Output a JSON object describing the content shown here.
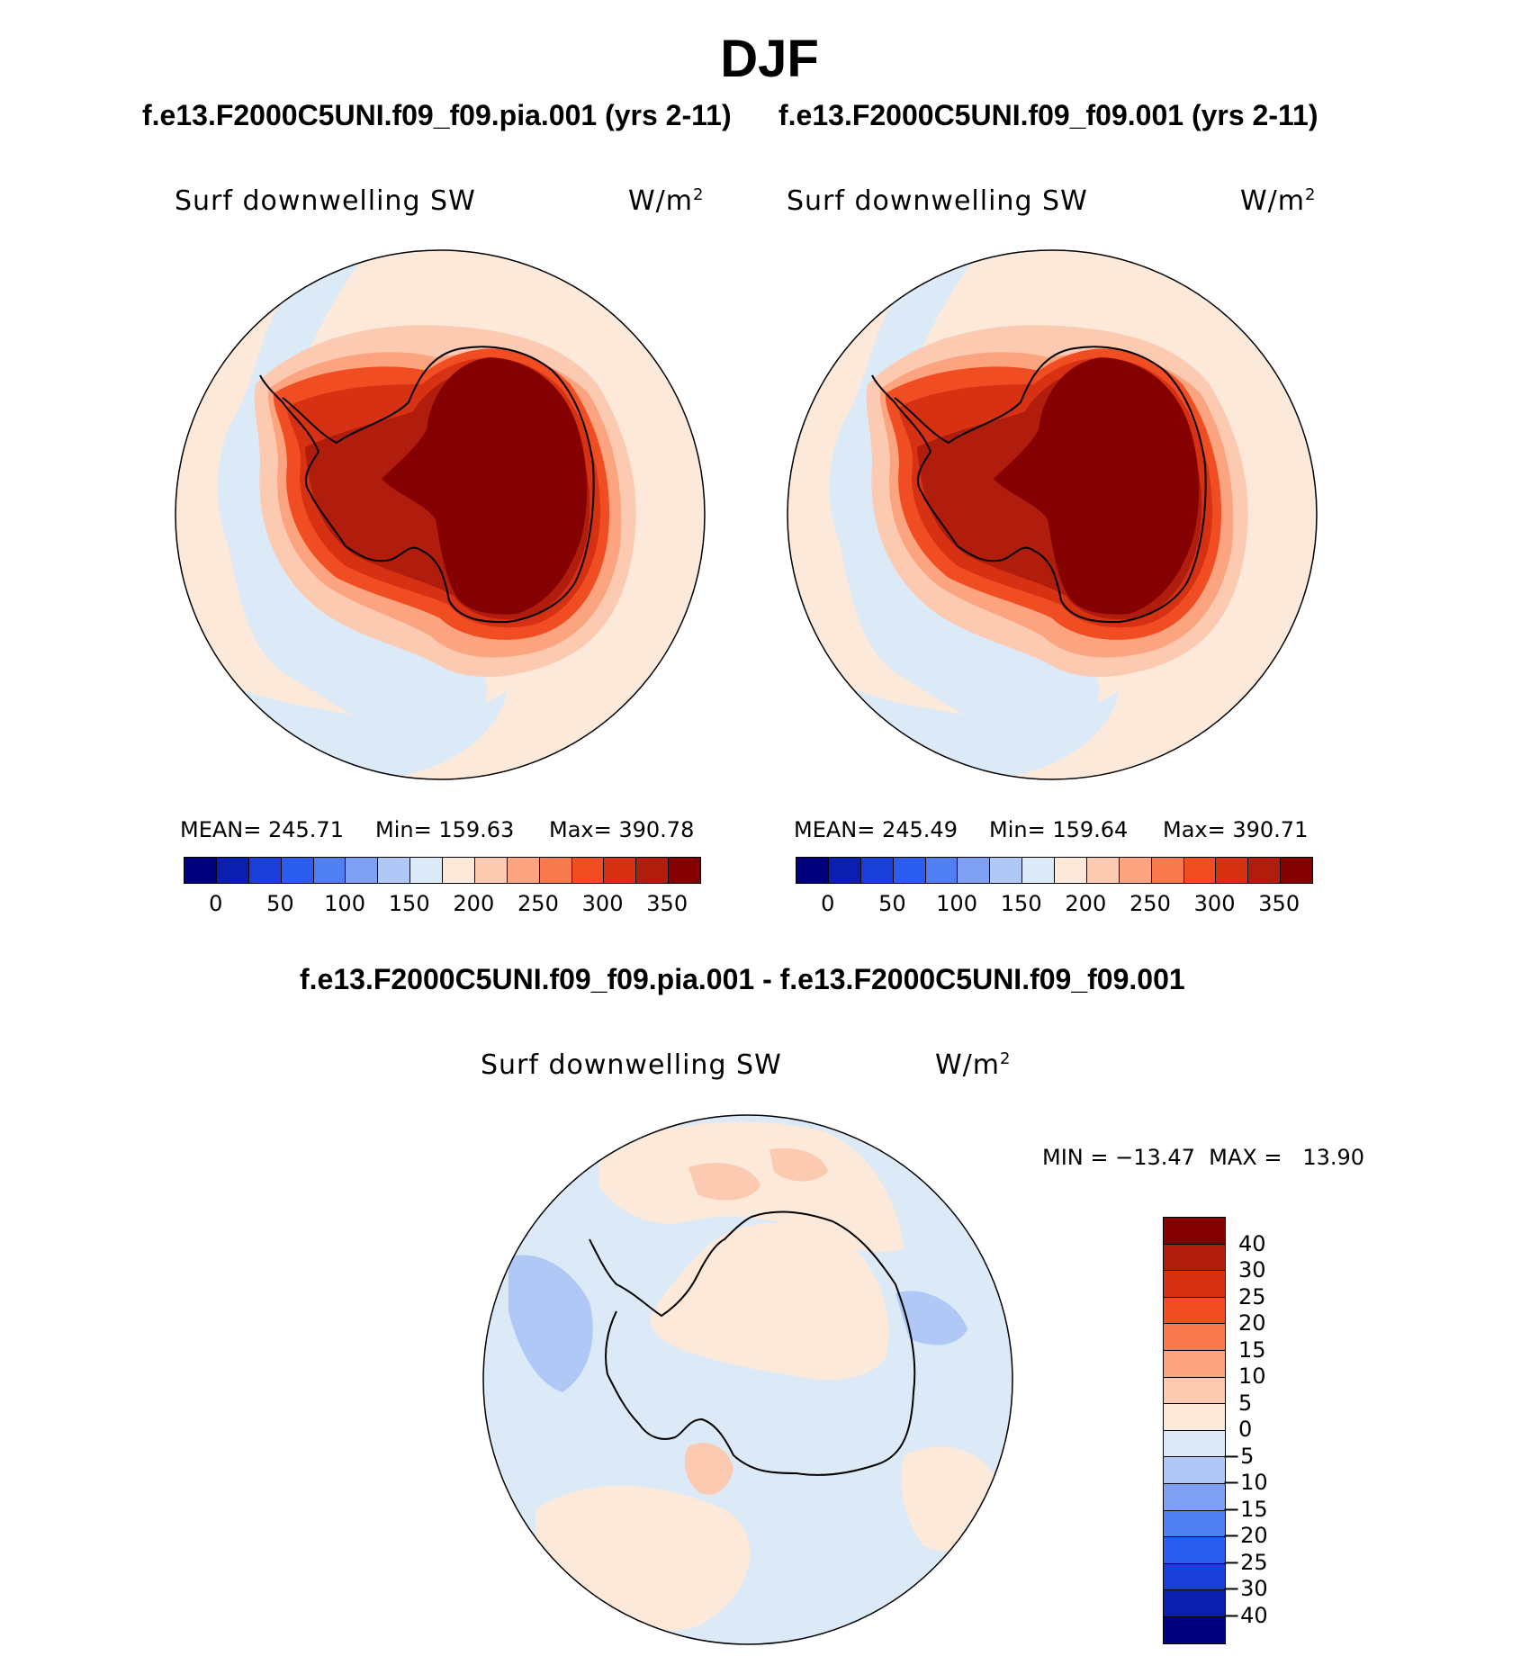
{
  "figure": {
    "season": "DJF",
    "case_a_title": "f.e13.F2000C5UNI.f09_f09.pia.001 (yrs 2-11)",
    "case_b_title": "f.e13.F2000C5UNI.f09_f09.001 (yrs 2-11)",
    "diff_title": "f.e13.F2000C5UNI.f09_f09.pia.001 - f.e13.F2000C5UNI.f09_f09.001"
  },
  "panels": {
    "a": {
      "variable": "Surf downwelling SW",
      "units_base": "W/m",
      "units_exp": "2",
      "mean_label": "MEAN= 245.71",
      "min_label": "Min= 159.63",
      "max_label": "Max= 390.78"
    },
    "b": {
      "variable": "Surf downwelling SW",
      "units_base": "W/m",
      "units_exp": "2",
      "mean_label": "MEAN= 245.49",
      "min_label": "Min= 159.64",
      "max_label": "Max= 390.71"
    },
    "diff": {
      "variable": "Surf downwelling SW",
      "units_base": "W/m",
      "units_exp": "2",
      "minmax_label": "MIN = −13.47  MAX =   13.90"
    }
  },
  "colorbar_abs": {
    "ticks": [
      "0",
      "50",
      "100",
      "150",
      "200",
      "250",
      "300",
      "350"
    ],
    "colors": [
      "#00007f",
      "#0a1fb0",
      "#1a3fd9",
      "#2b5cf0",
      "#4f7ff2",
      "#7f9ff2",
      "#b0c8f5",
      "#dceaf8",
      "#fde9d9",
      "#fcc9b1",
      "#fba47f",
      "#f97a4d",
      "#f04d23",
      "#d73114",
      "#b11d0c",
      "#850000"
    ]
  },
  "colorbar_diff": {
    "ticks": [
      "40",
      "30",
      "25",
      "20",
      "15",
      "10",
      "5",
      "0",
      "−5",
      "−10",
      "−15",
      "−20",
      "−25",
      "−30",
      "−40"
    ],
    "colors": [
      "#850000",
      "#b11d0c",
      "#d73114",
      "#f04d23",
      "#f97a4d",
      "#fba47f",
      "#fcc9b1",
      "#fde9d9",
      "#dceaf8",
      "#b0c8f5",
      "#7f9ff2",
      "#4f7ff2",
      "#2b5cf0",
      "#1a3fd9",
      "#0a1fb0",
      "#00007f"
    ]
  },
  "map_colors": {
    "ocean_light": "#fde9d9",
    "ocean_blue": "#dceaf8",
    "ice_dark": "#850000",
    "ring_1": "#b11d0c",
    "ring_2": "#d73114",
    "ring_3": "#f04d23",
    "ring_4": "#fba47f",
    "ring_5": "#fcc9b1",
    "diff_blue_mid": "#b0c8f5",
    "diff_red_mid": "#fcc9b1"
  }
}
